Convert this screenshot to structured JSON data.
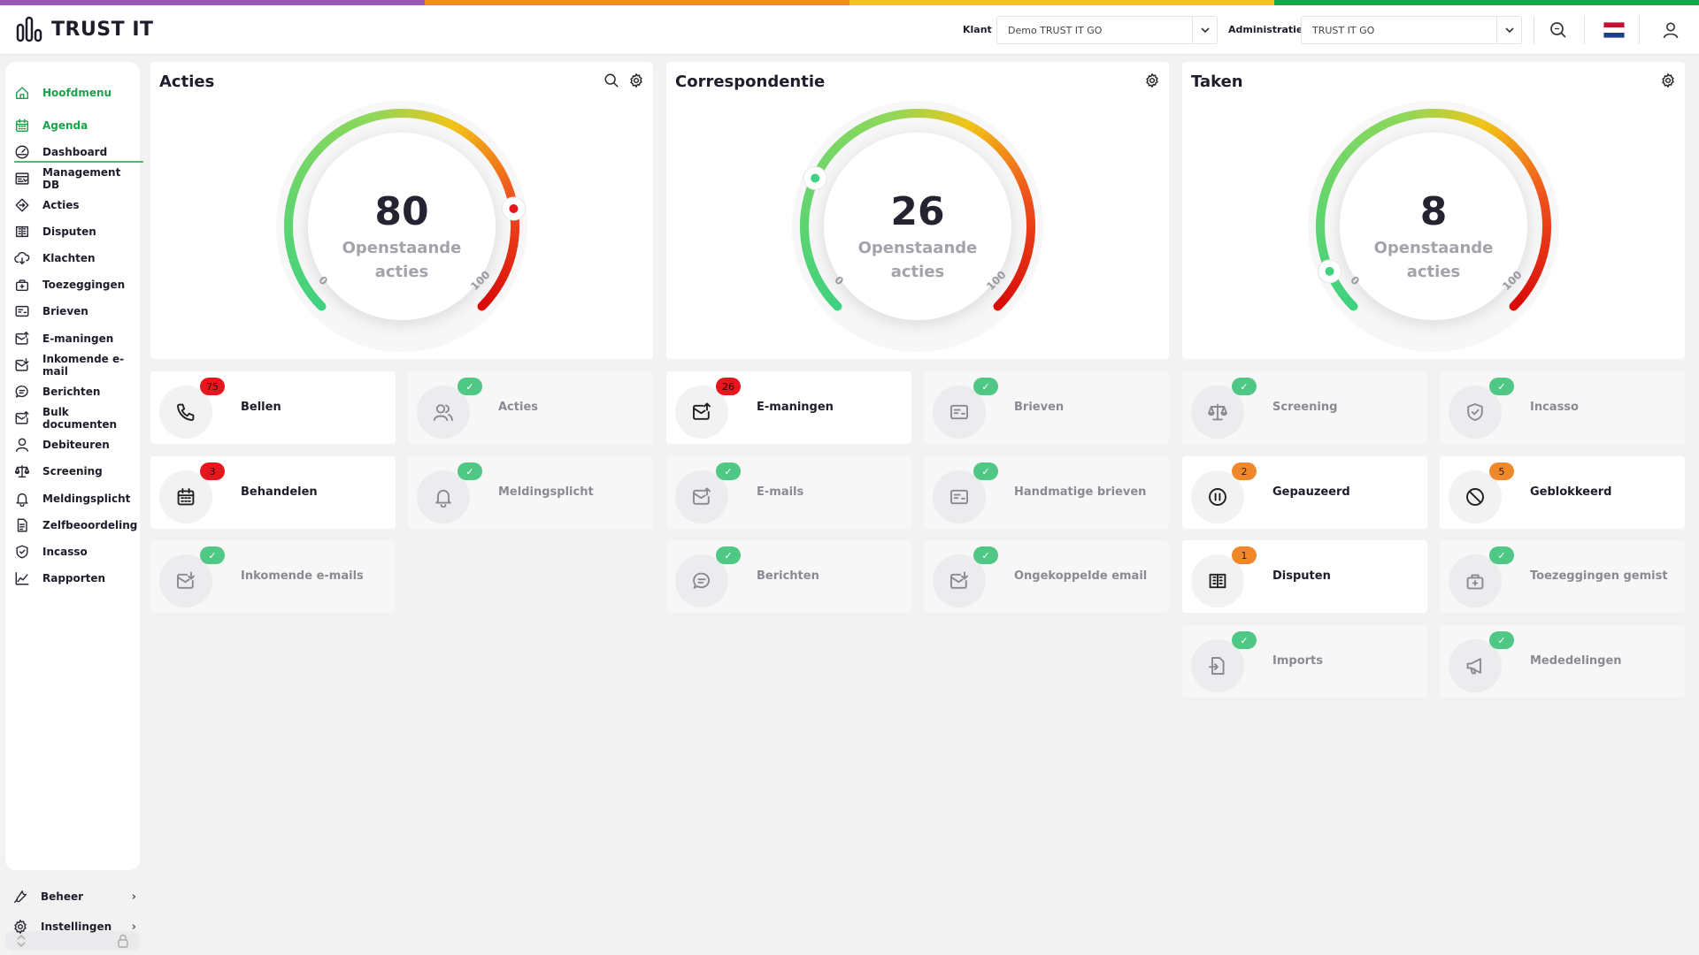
{
  "colors": {
    "strip": [
      "#9b59b6",
      "#f08a24",
      "#f2c418",
      "#1aa34a"
    ],
    "accent": "#1aa34a",
    "badge_red": "#e5161c",
    "badge_orange": "#f0882a",
    "badge_green": "#4fc885"
  },
  "header": {
    "logo_text": "TRUST IT",
    "klant_label": "Klant",
    "klant_value": "Demo TRUST IT GO",
    "administratie_label": "Administratie",
    "administratie_value": "TRUST IT GO",
    "icons": [
      "search-icon",
      "flag-nl-icon",
      "user-icon"
    ]
  },
  "sidebar": {
    "items": [
      {
        "label": "Hoofdmenu",
        "icon": "home-icon",
        "active": true
      },
      {
        "label": "Agenda",
        "icon": "calendar-icon",
        "active": true
      },
      {
        "label": "Dashboard",
        "icon": "dashboard-icon"
      },
      {
        "label": "Management DB",
        "icon": "management-icon"
      },
      {
        "label": "Acties",
        "icon": "actions-icon"
      },
      {
        "label": "Disputen",
        "icon": "disputes-icon"
      },
      {
        "label": "Klachten",
        "icon": "complaints-icon"
      },
      {
        "label": "Toezeggingen",
        "icon": "commitments-icon"
      },
      {
        "label": "Brieven",
        "icon": "letters-icon"
      },
      {
        "label": "E-maningen",
        "icon": "email-reminder-icon"
      },
      {
        "label": "Inkomende e-mail",
        "icon": "incoming-mail-icon"
      },
      {
        "label": "Berichten",
        "icon": "message-icon"
      },
      {
        "label": "Bulk documenten",
        "icon": "bulk-docs-icon"
      },
      {
        "label": "Debiteuren",
        "icon": "debtor-icon"
      },
      {
        "label": "Screening",
        "icon": "scale-icon"
      },
      {
        "label": "Meldingsplicht",
        "icon": "bell-icon"
      },
      {
        "label": "Zelfbeoordeling",
        "icon": "self-assessment-icon"
      },
      {
        "label": "Incasso",
        "icon": "shield-icon"
      },
      {
        "label": "Rapporten",
        "icon": "chart-icon"
      }
    ],
    "bottom": [
      {
        "label": "Beheer",
        "icon": "wrench-icon"
      },
      {
        "label": "Instellingen",
        "icon": "gear-icon"
      }
    ]
  },
  "panels": [
    {
      "title": "Acties",
      "value": "80",
      "level": 80,
      "subtitle_1": "Openstaande",
      "subtitle_2": "acties",
      "min": "0",
      "max": "100",
      "icons": [
        "search-icon",
        "gear-icon"
      ]
    },
    {
      "title": "Correspondentie",
      "value": "26",
      "level": 26,
      "subtitle_1": "Openstaande",
      "subtitle_2": "acties",
      "min": "0",
      "max": "100",
      "icons": [
        "gear-icon"
      ]
    },
    {
      "title": "Taken",
      "value": "8",
      "level": 8,
      "subtitle_1": "Openstaande",
      "subtitle_2": "acties",
      "min": "0",
      "max": "100",
      "icons": [
        "gear-icon"
      ]
    }
  ],
  "tiles": [
    {
      "label": "Bellen",
      "icon": "phone-icon",
      "badge": "75",
      "badge_type": "red",
      "active": true
    },
    {
      "label": "Acties",
      "icon": "users-icon",
      "badge": "✓",
      "badge_type": "green",
      "active": false
    },
    {
      "label": "Behandelen",
      "icon": "calendar-icon",
      "badge": "3",
      "badge_type": "red",
      "active": true
    },
    {
      "label": "Meldingsplicht",
      "icon": "bell-icon",
      "badge": "✓",
      "badge_type": "green",
      "active": false
    },
    {
      "label": "Inkomende e-mails",
      "icon": "incoming-mail-icon",
      "badge": "✓",
      "badge_type": "green",
      "active": false
    },
    {
      "label": "E-maningen",
      "icon": "email-reminder-icon",
      "badge": "26",
      "badge_type": "red",
      "active": true
    },
    {
      "label": "Brieven",
      "icon": "letters-icon",
      "badge": "✓",
      "badge_type": "green",
      "active": false
    },
    {
      "label": "E-mails",
      "icon": "email-out-icon",
      "badge": "✓",
      "badge_type": "green",
      "active": false
    },
    {
      "label": "Handmatige brieven",
      "icon": "letters-icon",
      "badge": "✓",
      "badge_type": "green",
      "active": false
    },
    {
      "label": "Berichten",
      "icon": "message-icon",
      "badge": "✓",
      "badge_type": "green",
      "active": false
    },
    {
      "label": "Ongekoppelde email",
      "icon": "incoming-mail-icon",
      "badge": "✓",
      "badge_type": "green",
      "active": false
    },
    {
      "label": "Screening",
      "icon": "scale-icon",
      "badge": "✓",
      "badge_type": "green",
      "active": false
    },
    {
      "label": "Incasso",
      "icon": "shield-icon",
      "badge": "✓",
      "badge_type": "green",
      "active": false
    },
    {
      "label": "Gepauzeerd",
      "icon": "pause-icon",
      "badge": "2",
      "badge_type": "orange",
      "active": true
    },
    {
      "label": "Geblokkeerd",
      "icon": "blocked-icon",
      "badge": "5",
      "badge_type": "orange",
      "active": true
    },
    {
      "label": "Disputen",
      "icon": "disputes-icon",
      "badge": "1",
      "badge_type": "orange",
      "active": true
    },
    {
      "label": "Toezeggingen gemist",
      "icon": "commitments-icon",
      "badge": "✓",
      "badge_type": "green",
      "active": false
    },
    {
      "label": "Imports",
      "icon": "import-icon",
      "badge": "✓",
      "badge_type": "green",
      "active": false
    },
    {
      "label": "Mededelingen",
      "icon": "megaphone-icon",
      "badge": "✓",
      "badge_type": "green",
      "active": false
    }
  ]
}
